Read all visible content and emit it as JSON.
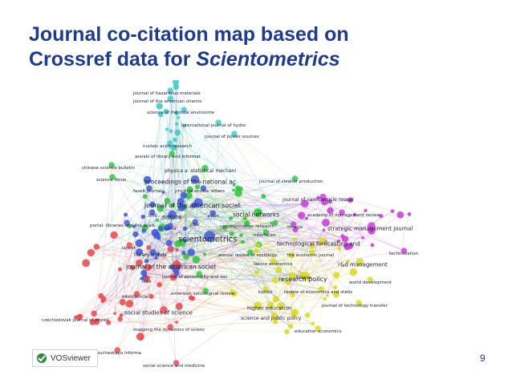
{
  "slide": {
    "title_line1": "Journal co-citation map based on",
    "title_line2_prefix": "Crossref data for ",
    "title_line2_em": "Scientometrics",
    "page_number": "9"
  },
  "logo": {
    "name": "VOSviewer"
  },
  "colors": {
    "red": "#e8454a",
    "green": "#2ec43a",
    "blue": "#3a55d6",
    "yellow": "#d9d91f",
    "purple": "#c53bd6",
    "cyan": "#3cc9c9",
    "title": "#1f3b8c"
  },
  "map": {
    "labels": [
      {
        "text": "journal of hazardous materials",
        "cluster": "cyan"
      },
      {
        "text": "journal of the american chemic",
        "cluster": "cyan"
      },
      {
        "text": "science of the total environme",
        "cluster": "cyan"
      },
      {
        "text": "international journal of hydro",
        "cluster": "cyan"
      },
      {
        "text": "journal of power sources",
        "cluster": "cyan"
      },
      {
        "text": "nucleic acids research",
        "cluster": "cyan"
      },
      {
        "text": "annals of library and informat",
        "cluster": "green"
      },
      {
        "text": "chinese science bulletin",
        "cluster": "green"
      },
      {
        "text": "physica a: statistical mechani",
        "cluster": "green"
      },
      {
        "text": "science focus",
        "cluster": "green"
      },
      {
        "text": "proceedings of the national ac",
        "cluster": "blue"
      },
      {
        "text": "journal of cleaner production",
        "cluster": "green"
      },
      {
        "text": "faseb journal",
        "cluster": "blue"
      },
      {
        "text": "physical review letters",
        "cluster": "blue"
      },
      {
        "text": "journal of nanoparticle resear",
        "cluster": "purple"
      },
      {
        "text": "journal of the american societ",
        "cluster": "blue"
      },
      {
        "text": "nature",
        "cluster": "blue"
      },
      {
        "text": "bmj",
        "cluster": "blue"
      },
      {
        "text": "pnas",
        "cluster": "blue"
      },
      {
        "text": "social networks",
        "cluster": "green"
      },
      {
        "text": "academy of management review",
        "cluster": "purple"
      },
      {
        "text": "portal: libraries and the acad",
        "cluster": "blue"
      },
      {
        "text": "jama",
        "cluster": "blue"
      },
      {
        "text": "plos",
        "cluster": "blue"
      },
      {
        "text": "communication research",
        "cluster": "green"
      },
      {
        "text": "omega",
        "cluster": "purple"
      },
      {
        "text": "strategic management journal",
        "cluster": "purple"
      },
      {
        "text": "interfaces",
        "cluster": "green"
      },
      {
        "text": "scientometrics",
        "cluster": "blue"
      },
      {
        "text": "technological forecasting and",
        "cluster": "yellow"
      },
      {
        "text": "lancet",
        "cluster": "red"
      },
      {
        "text": "technovation",
        "cluster": "purple"
      },
      {
        "text": "library trends",
        "cluster": "blue"
      },
      {
        "text": "annual review of sociology",
        "cluster": "green"
      },
      {
        "text": "the economic journal",
        "cluster": "yellow"
      },
      {
        "text": "labour economics",
        "cluster": "yellow"
      },
      {
        "text": "r&d management",
        "cluster": "yellow"
      },
      {
        "text": "journal of the american societ",
        "cluster": "red"
      },
      {
        "text": "journal of personality and soc",
        "cluster": "green"
      },
      {
        "text": "futures",
        "cluster": "yellow"
      },
      {
        "text": "research policy",
        "cluster": "yellow"
      },
      {
        "text": "ieee",
        "cluster": "red"
      },
      {
        "text": "world development",
        "cluster": "yellow"
      },
      {
        "text": "kyklos",
        "cluster": "yellow"
      },
      {
        "text": "review of economics and statis",
        "cluster": "yellow"
      },
      {
        "text": "american sociological review",
        "cluster": "green"
      },
      {
        "text": "interciencia",
        "cluster": "red"
      },
      {
        "text": "journal of technology transfer",
        "cluster": "yellow"
      },
      {
        "text": "higher education",
        "cluster": "yellow"
      },
      {
        "text": "social studies of science",
        "cluster": "red"
      },
      {
        "text": "czechoslovak journal of physic",
        "cluster": "red"
      },
      {
        "text": "science and public policy",
        "cluster": "yellow"
      },
      {
        "text": "mapping the dynamics of scienc",
        "cluster": "red"
      },
      {
        "text": "education economics",
        "cluster": "yellow"
      },
      {
        "text": "naucheskaya informa",
        "cluster": "red"
      },
      {
        "text": "social science and medicine",
        "cluster": "red"
      }
    ]
  }
}
